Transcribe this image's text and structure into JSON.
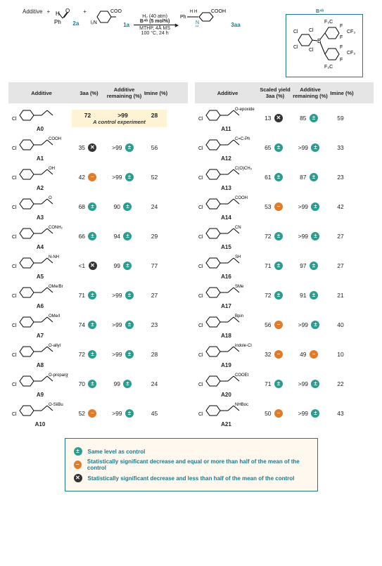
{
  "colors": {
    "teal": "#2a9d8f",
    "orange": "#e07b2c",
    "dark": "#333333",
    "accent": "#1a7a8c",
    "highlight_bg": "#fff3d6",
    "legend_bg": "#fff8ee",
    "header_bg": "#e5e5e5"
  },
  "scheme": {
    "additive": "Additive",
    "plus": "+",
    "aldehyde": "PhCHO",
    "aldehyde_label": "2a",
    "amine": "4-NH₂-C₆H₄-COOH",
    "amine_label": "1a",
    "conditions_top": "H₂ (40 atm)",
    "conditions_cat": "B⁴ᵇ (5 mol%)",
    "conditions_line2": "MTHP, 4Å MS",
    "conditions_line3": "100 °C, 24 h",
    "product": "Ph-CH(NH)-C₆H₄-COOH",
    "product_label": "3aa",
    "catbox_label": "B⁴ᵇ",
    "catbox_groups": [
      "Cl",
      "Cl",
      "Cl",
      "Cl",
      "F",
      "F",
      "F",
      "F",
      "CF₃",
      "CF₃",
      "CF₃",
      "F₃C",
      "F₃C"
    ]
  },
  "headers_left": {
    "additive": "Additive",
    "yield": "3aa (%)",
    "remaining": "Additive remaining (%)",
    "imine": "Imine (%)"
  },
  "headers_right": {
    "additive": "Additive",
    "yield": "Scaled yield 3aa (%)",
    "remaining": "Additive remaining (%)",
    "imine": "Imine (%)"
  },
  "badge_legend": {
    "same": "Same level as control",
    "half": "Statistically significant decrease and equal or more than half of the mean of the control",
    "less": "Statistically significant decrease and less than half of the mean of the control"
  },
  "badge_symbols": {
    "same": "±",
    "half": "−",
    "less": "✕"
  },
  "control_note": "A control experiment",
  "left": [
    {
      "id": "A0",
      "yield": "72",
      "yb": null,
      "rem": ">99",
      "rb": null,
      "imine": "28",
      "control": true
    },
    {
      "id": "A1",
      "yield": "35",
      "yb": "less",
      "rem": ">99",
      "rb": "same",
      "imine": "56"
    },
    {
      "id": "A2",
      "yield": "42",
      "yb": "half",
      "rem": ">99",
      "rb": "same",
      "imine": "52"
    },
    {
      "id": "A3",
      "yield": "68",
      "yb": "same",
      "rem": "90",
      "rb": "same",
      "imine": "24"
    },
    {
      "id": "A4",
      "yield": "66",
      "yb": "same",
      "rem": "94",
      "rb": "same",
      "imine": "29"
    },
    {
      "id": "A5",
      "yield": "<1",
      "yb": "less",
      "rem": "99",
      "rb": "same",
      "imine": "77"
    },
    {
      "id": "A6",
      "yield": "71",
      "yb": "same",
      "rem": ">99",
      "rb": "same",
      "imine": "27"
    },
    {
      "id": "A7",
      "yield": "74",
      "yb": "same",
      "rem": ">99",
      "rb": "same",
      "imine": "23"
    },
    {
      "id": "A8",
      "yield": "72",
      "yb": "same",
      "rem": ">99",
      "rb": "same",
      "imine": "28"
    },
    {
      "id": "A9",
      "yield": "70",
      "yb": "same",
      "rem": "99",
      "rb": "same",
      "imine": "24"
    },
    {
      "id": "A10",
      "yield": "52",
      "yb": "half",
      "rem": ">99",
      "rb": "same",
      "imine": "45"
    }
  ],
  "right": [
    {
      "id": "A11",
      "yield": "13",
      "yb": "less",
      "rem": "85",
      "rb": "same",
      "imine": "59"
    },
    {
      "id": "A12",
      "yield": "65",
      "yb": "same",
      "rem": ">99",
      "rb": "same",
      "imine": "33"
    },
    {
      "id": "A13",
      "yield": "61",
      "yb": "same",
      "rem": "87",
      "rb": "same",
      "imine": "23"
    },
    {
      "id": "A14",
      "yield": "53",
      "yb": "half",
      "rem": ">99",
      "rb": "same",
      "imine": "42"
    },
    {
      "id": "A15",
      "yield": "72",
      "yb": "same",
      "rem": ">99",
      "rb": "same",
      "imine": "27"
    },
    {
      "id": "A16",
      "yield": "71",
      "yb": "same",
      "rem": "97",
      "rb": "same",
      "imine": "27"
    },
    {
      "id": "A17",
      "yield": "72",
      "yb": "same",
      "rem": "91",
      "rb": "same",
      "imine": "21"
    },
    {
      "id": "A18",
      "yield": "56",
      "yb": "half",
      "rem": ">99",
      "rb": "same",
      "imine": "40"
    },
    {
      "id": "A19",
      "yield": "32",
      "yb": "half",
      "rem": "49",
      "rb": "half",
      "imine": "10"
    },
    {
      "id": "A20",
      "yield": "71",
      "yb": "same",
      "rem": ">99",
      "rb": "same",
      "imine": "22"
    },
    {
      "id": "A21",
      "yield": "50",
      "yb": "half",
      "rem": ">99",
      "rb": "same",
      "imine": "43"
    }
  ],
  "struct_labels": {
    "A0": "",
    "A1": "COOH",
    "A2": "OH",
    "A3": "O",
    "A4": "CONH₂",
    "A5": "N-NH",
    "A6": "OMe/Br",
    "A7": "OMe/I",
    "A8": "O-allyl",
    "A9": "O-propargyl",
    "A10": "O-SiiBu",
    "A11": "O-epoxide",
    "A12": "C=C-Ph",
    "A13": "C(O)CH₃",
    "A14": "COOH",
    "A15": "CN",
    "A16": "SH",
    "A17": "SMe",
    "A18": "Bpin",
    "A19": "indole-Cl",
    "A20": "COOEt",
    "A21": "NHBoc"
  }
}
